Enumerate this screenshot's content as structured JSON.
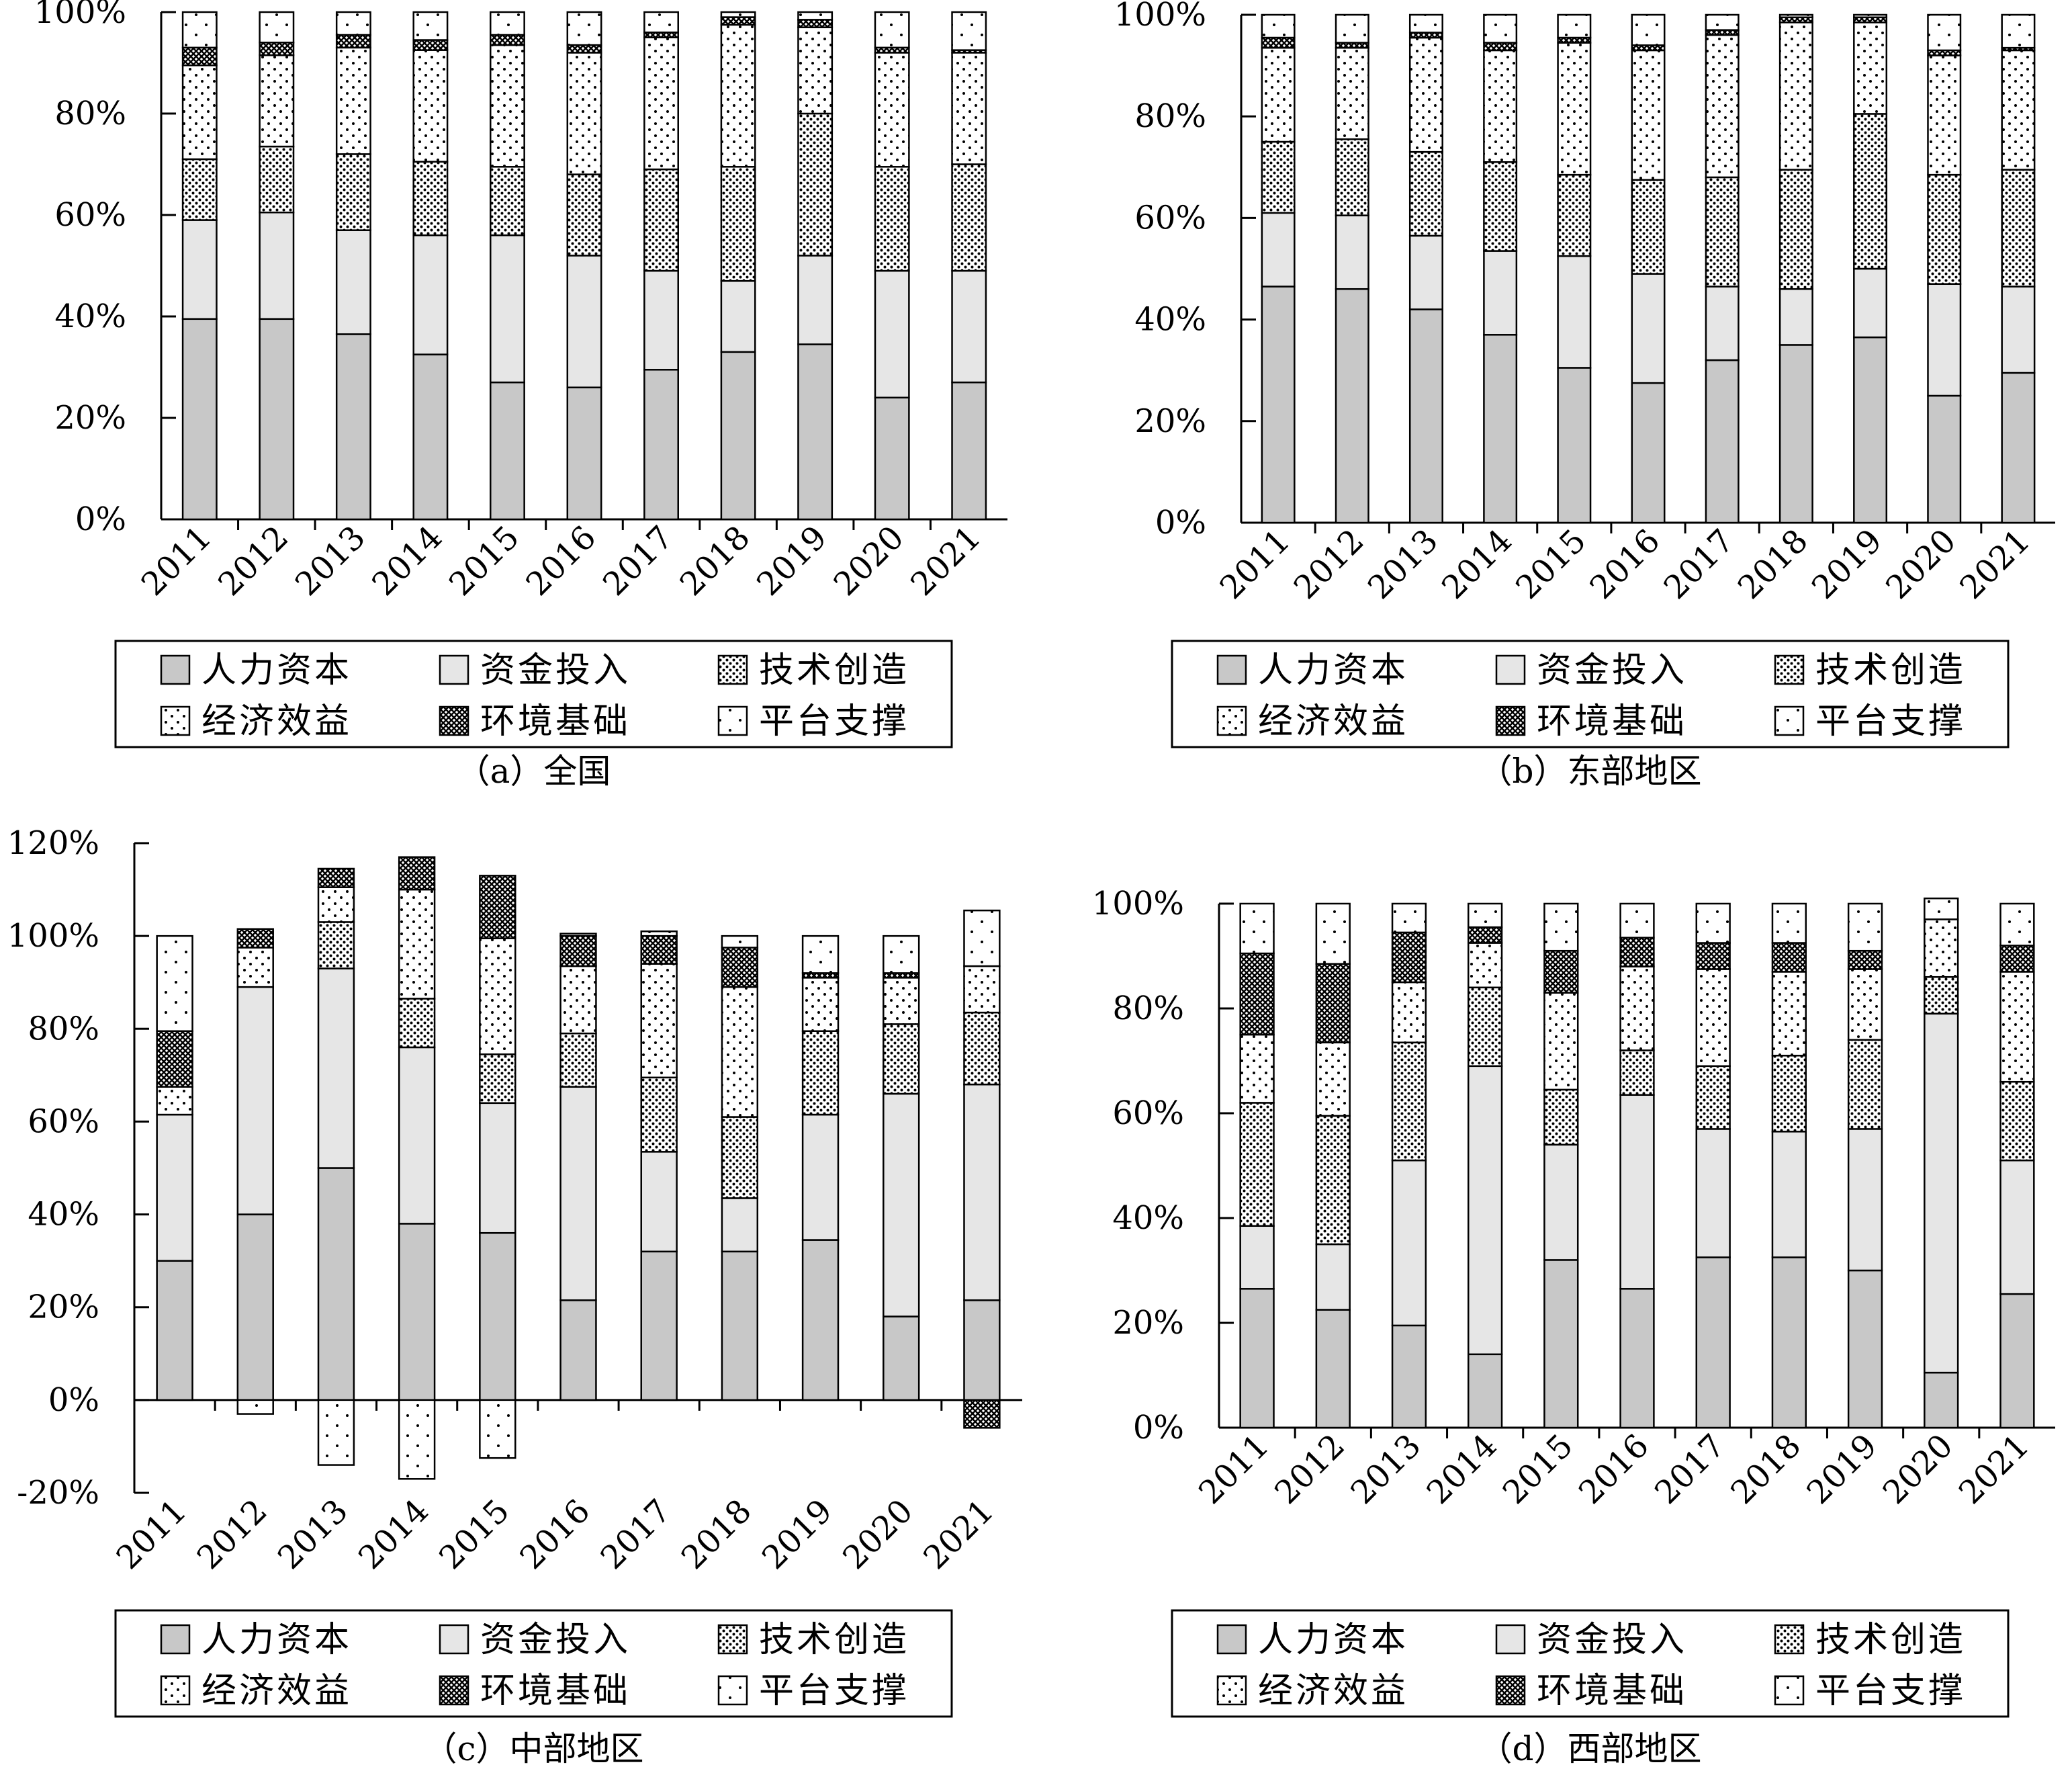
{
  "legend_entries": [
    {
      "name": "人力资本",
      "pattern": "solid-gray"
    },
    {
      "name": "资金投入",
      "pattern": "light-gray"
    },
    {
      "name": "技术创造",
      "pattern": "dense-dots"
    },
    {
      "name": "经济效益",
      "pattern": "sparse-dots"
    },
    {
      "name": "环境基础",
      "pattern": "crosshatch"
    },
    {
      "name": "平台支撑",
      "pattern": "very-sparse-dots"
    }
  ],
  "colors": {
    "solid": "#c8c8c8",
    "light": "#e6e6e6",
    "ink": "#000000"
  },
  "chart_data": [
    {
      "type": "bar",
      "stacked": true,
      "caption": "（a）全国",
      "categories": [
        "2011",
        "2012",
        "2013",
        "2014",
        "2015",
        "2016",
        "2017",
        "2018",
        "2019",
        "2020",
        "2021"
      ],
      "yticks": [
        "0%",
        "20%",
        "40%",
        "60%",
        "80%",
        "100%"
      ],
      "ylim": [
        0,
        100
      ],
      "series": [
        {
          "name": "人力资本",
          "values": [
            39.5,
            39.5,
            36.5,
            32.5,
            27,
            26,
            29.5,
            33,
            34.5,
            24,
            27
          ]
        },
        {
          "name": "资金投入",
          "values": [
            19.5,
            21,
            20.5,
            23.5,
            29,
            26,
            19.5,
            14,
            17.5,
            25,
            22
          ]
        },
        {
          "name": "技术创造",
          "values": [
            12,
            13,
            15,
            14.5,
            13.5,
            16,
            20,
            22.5,
            28,
            20.5,
            21
          ]
        },
        {
          "name": "经济效益",
          "values": [
            18.5,
            18,
            21,
            22,
            24,
            24,
            26,
            28,
            17,
            22.5,
            22
          ]
        },
        {
          "name": "环境基础",
          "values": [
            3.5,
            2.5,
            2.5,
            2,
            2,
            1.5,
            1,
            1.5,
            1.5,
            1,
            0.5
          ]
        },
        {
          "name": "平台支撑",
          "values": [
            7,
            6,
            4.5,
            5.5,
            4.5,
            6.5,
            4,
            1,
            1.5,
            7,
            7.5
          ]
        }
      ]
    },
    {
      "type": "bar",
      "stacked": true,
      "caption": "（b）东部地区",
      "categories": [
        "2011",
        "2012",
        "2013",
        "2014",
        "2015",
        "2016",
        "2017",
        "2018",
        "2019",
        "2020",
        "2021"
      ],
      "yticks": [
        "0%",
        "20%",
        "40%",
        "60%",
        "80%",
        "100%"
      ],
      "ylim": [
        0,
        100
      ],
      "series": [
        {
          "name": "人力资本",
          "values": [
            46.5,
            46,
            42,
            37,
            30.5,
            27.5,
            32,
            35,
            36.5,
            25,
            29.5
          ]
        },
        {
          "name": "资金投入",
          "values": [
            14.5,
            14.5,
            14.5,
            16.5,
            22,
            21.5,
            14.5,
            11,
            13.5,
            22,
            17
          ]
        },
        {
          "name": "技术创造",
          "values": [
            14,
            15,
            16.5,
            17.5,
            16,
            18.5,
            21.5,
            23.5,
            30.5,
            21.5,
            23
          ]
        },
        {
          "name": "经济效益",
          "values": [
            18.5,
            18,
            22.5,
            22,
            26,
            25.5,
            28,
            29,
            18,
            23.5,
            23.5
          ]
        },
        {
          "name": "环境基础",
          "values": [
            2,
            1,
            1,
            1.5,
            1,
            1,
            1,
            1,
            1,
            1,
            0.5
          ]
        },
        {
          "name": "平台支撑",
          "values": [
            4.5,
            5.5,
            3.5,
            5.5,
            4.5,
            6,
            3,
            0.5,
            0.5,
            7,
            6.5
          ]
        }
      ]
    },
    {
      "type": "bar",
      "stacked": true,
      "caption": "（c）中部地区",
      "categories": [
        "2011",
        "2012",
        "2013",
        "2014",
        "2015",
        "2016",
        "2017",
        "2018",
        "2019",
        "2020",
        "2021"
      ],
      "yticks": [
        "-20%",
        "0%",
        "20%",
        "40%",
        "60%",
        "80%",
        "100%",
        "120%"
      ],
      "ylim": [
        -20,
        120
      ],
      "series": [
        {
          "name": "人力资本",
          "values": [
            30,
            40,
            50,
            38,
            36,
            21.5,
            32,
            32,
            34.5,
            18,
            21.5
          ]
        },
        {
          "name": "资金投入",
          "values": [
            31.5,
            49,
            43,
            38,
            28,
            46,
            21.5,
            11.5,
            27,
            48,
            46.5
          ]
        },
        {
          "name": "技术创造",
          "values": [
            0,
            0,
            10,
            10.5,
            10.5,
            11.5,
            16,
            17.5,
            18,
            15,
            15.5
          ]
        },
        {
          "name": "经济效益",
          "values": [
            6,
            8.5,
            7.5,
            23.5,
            25,
            14.5,
            24.5,
            28,
            11.5,
            10,
            10
          ]
        },
        {
          "name": "环境基础",
          "values": [
            12,
            4,
            4,
            7,
            13.5,
            6.5,
            6,
            8.5,
            1,
            1,
            -6
          ]
        },
        {
          "name": "平台支撑",
          "values": [
            20.5,
            -3,
            -14,
            -17,
            -12.5,
            0.5,
            1,
            2.5,
            8,
            8,
            12
          ]
        }
      ]
    },
    {
      "type": "bar",
      "stacked": true,
      "caption": "（d）西部地区",
      "categories": [
        "2011",
        "2012",
        "2013",
        "2014",
        "2015",
        "2016",
        "2017",
        "2018",
        "2019",
        "2020",
        "2021"
      ],
      "yticks": [
        "0%",
        "20%",
        "40%",
        "60%",
        "80%",
        "100%"
      ],
      "ylim": [
        0,
        100
      ],
      "series": [
        {
          "name": "人力资本",
          "values": [
            26.5,
            22.5,
            19.5,
            14,
            32,
            26.5,
            32.5,
            32.5,
            30,
            10.5,
            25.5
          ]
        },
        {
          "name": "资金投入",
          "values": [
            12,
            12.5,
            31.5,
            55,
            22,
            37,
            24.5,
            24,
            27,
            68.5,
            25.5
          ]
        },
        {
          "name": "技术创造",
          "values": [
            23.5,
            24.5,
            22.5,
            15,
            10.5,
            8.5,
            12,
            14.5,
            17,
            7,
            15
          ]
        },
        {
          "name": "经济效益",
          "values": [
            13,
            14,
            11.5,
            8.5,
            18.5,
            16,
            18.5,
            16,
            13.5,
            11,
            21
          ]
        },
        {
          "name": "环境基础",
          "values": [
            15.5,
            15,
            9.5,
            3,
            8,
            5.5,
            5,
            5.5,
            3.5,
            0,
            5
          ]
        },
        {
          "name": "平台支撑",
          "values": [
            9.5,
            11.5,
            5.5,
            4.5,
            9,
            6.5,
            7.5,
            7.5,
            9,
            4,
            8
          ]
        }
      ]
    }
  ]
}
